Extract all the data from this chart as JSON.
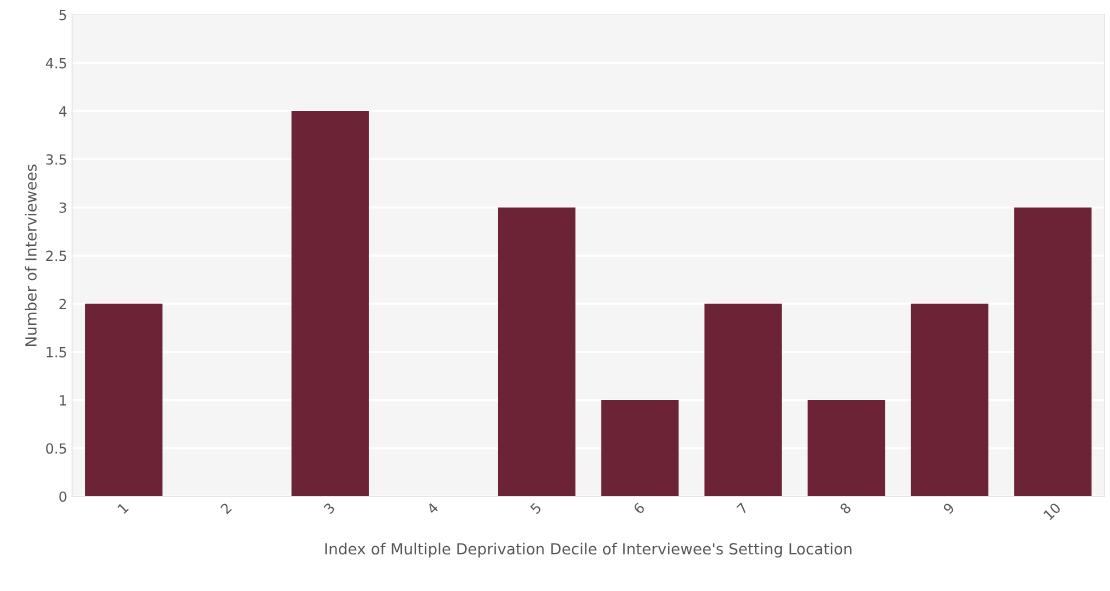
{
  "chart_data": {
    "type": "bar",
    "xlabel": "Index of Multiple Deprivation Decile of Interviewee's Setting Location",
    "ylabel": "Number of Interviewees",
    "categories": [
      "1",
      "2",
      "3",
      "4",
      "5",
      "6",
      "7",
      "8",
      "9",
      "10"
    ],
    "values": [
      2,
      0,
      4,
      0,
      3,
      1,
      2,
      1,
      2,
      3
    ],
    "color": "#6b2335",
    "ylim": [
      0,
      5
    ],
    "yticks": [
      0,
      0.5,
      1,
      1.5,
      2,
      2.5,
      3,
      3.5,
      4,
      4.5,
      5
    ],
    "grid": "y"
  }
}
